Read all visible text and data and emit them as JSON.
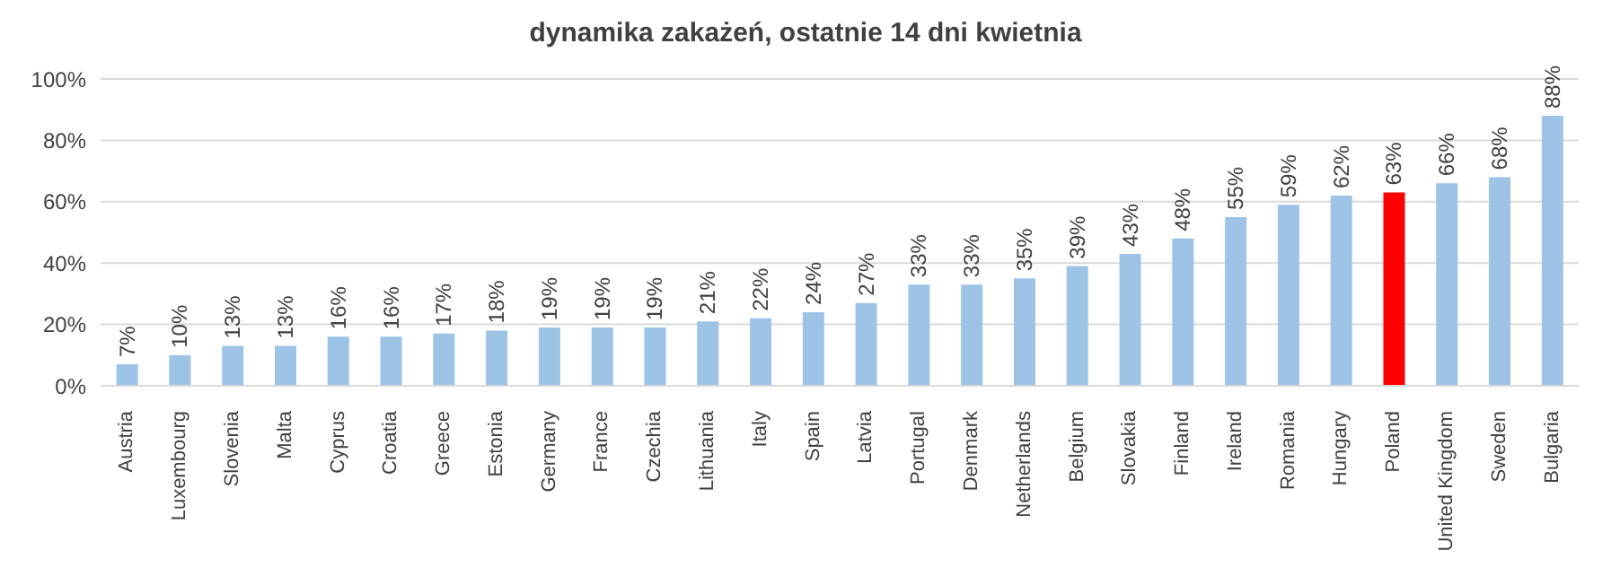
{
  "chart_data": {
    "type": "bar",
    "title": "dynamika zakażeń, ostatnie 14 dni kwietnia",
    "categories": [
      "Austria",
      "Luxembourg",
      "Slovenia",
      "Malta",
      "Cyprus",
      "Croatia",
      "Greece",
      "Estonia",
      "Germany",
      "France",
      "Czechia",
      "Lithuania",
      "Italy",
      "Spain",
      "Latvia",
      "Portugal",
      "Denmark",
      "Netherlands",
      "Belgium",
      "Slovakia",
      "Finland",
      "Ireland",
      "Romania",
      "Hungary",
      "Poland",
      "United Kingdom",
      "Sweden",
      "Bulgaria"
    ],
    "values": [
      7,
      10,
      13,
      13,
      16,
      16,
      17,
      18,
      19,
      19,
      19,
      21,
      22,
      24,
      27,
      33,
      33,
      35,
      39,
      43,
      48,
      55,
      59,
      62,
      63,
      66,
      68,
      88
    ],
    "value_labels": [
      "7%",
      "10%",
      "13%",
      "13%",
      "16%",
      "16%",
      "17%",
      "18%",
      "19%",
      "19%",
      "19%",
      "21%",
      "22%",
      "24%",
      "27%",
      "33%",
      "33%",
      "35%",
      "39%",
      "43%",
      "48%",
      "55%",
      "59%",
      "62%",
      "63%",
      "66%",
      "68%",
      "88%"
    ],
    "colors": [
      "#9dc3e6",
      "#9dc3e6",
      "#9dc3e6",
      "#9dc3e6",
      "#9dc3e6",
      "#9dc3e6",
      "#9dc3e6",
      "#9dc3e6",
      "#9dc3e6",
      "#9dc3e6",
      "#9dc3e6",
      "#9dc3e6",
      "#9dc3e6",
      "#9dc3e6",
      "#9dc3e6",
      "#9dc3e6",
      "#9dc3e6",
      "#9dc3e6",
      "#9dc3e6",
      "#9dc3e6",
      "#9dc3e6",
      "#9dc3e6",
      "#9dc3e6",
      "#9dc3e6",
      "#ff0000",
      "#9dc3e6",
      "#9dc3e6",
      "#9dc3e6"
    ],
    "ylim": [
      0,
      100
    ],
    "yticks": [
      {
        "value": 0,
        "label": "0%"
      },
      {
        "value": 20,
        "label": "20%"
      },
      {
        "value": 40,
        "label": "40%"
      },
      {
        "value": 60,
        "label": "60%"
      },
      {
        "value": 80,
        "label": "80%"
      },
      {
        "value": 100,
        "label": "100%"
      }
    ],
    "grid": "y"
  }
}
